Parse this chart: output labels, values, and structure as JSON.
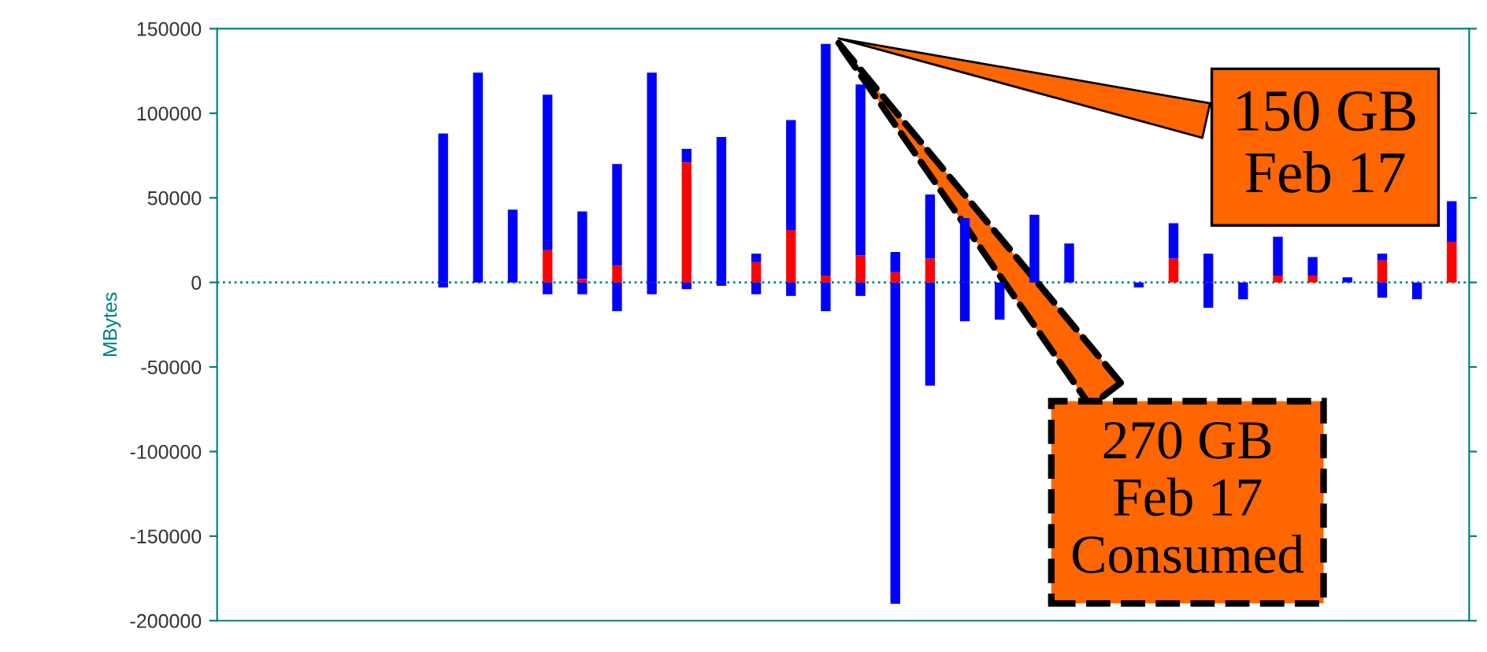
{
  "chart_data": {
    "type": "bar",
    "stacked": true,
    "ylabel": "MBytes",
    "categories": [
      null,
      null,
      null,
      null,
      null,
      null,
      null,
      null,
      null,
      null,
      null,
      null,
      null,
      null,
      null,
      null,
      null,
      null,
      null,
      null,
      null,
      null,
      null,
      null,
      null,
      null,
      null,
      null,
      null,
      null,
      null,
      null,
      null,
      null,
      null,
      null
    ],
    "series": [
      {
        "color": "#ff0000",
        "values": [
          null,
          null,
          null,
          null,
          null,
          null,
          0,
          0,
          0,
          19000,
          2000,
          10000,
          0,
          71000,
          0,
          12000,
          31000,
          4000,
          16000,
          6000,
          14000,
          0,
          0,
          0,
          0,
          null,
          0,
          14000,
          0,
          0,
          4000,
          4000,
          0,
          13000,
          0,
          24000
        ]
      },
      {
        "color": "#0000ff",
        "values": [
          null,
          null,
          null,
          null,
          null,
          null,
          88000,
          124000,
          43000,
          92000,
          40000,
          60000,
          124000,
          8000,
          86000,
          5000,
          65000,
          137000,
          101000,
          12000,
          38000,
          38000,
          null,
          40000,
          23000,
          null,
          0,
          21000,
          17000,
          0,
          23000,
          11000,
          3000,
          4000,
          0,
          24000
        ]
      },
      {
        "color": "#0000ff",
        "values": [
          null,
          null,
          null,
          null,
          null,
          null,
          -3000,
          0,
          0,
          -7000,
          -7000,
          -17000,
          -7000,
          -4000,
          -2000,
          -7000,
          -8000,
          -17000,
          -8000,
          -190000,
          -61000,
          -23000,
          -22000,
          null,
          null,
          null,
          -3000,
          null,
          -15000,
          -10000,
          0,
          null,
          null,
          -9000,
          -10000,
          0
        ]
      }
    ],
    "ylim": [
      -200000,
      150000
    ],
    "yticks": [
      -200000,
      -150000,
      -100000,
      -50000,
      0,
      50000,
      100000,
      150000
    ],
    "ref_lines": [
      {
        "axis": "y",
        "value": 0,
        "color": "#008080",
        "line_style": "dotted"
      }
    ],
    "grid": false,
    "annotations": [
      "150 GB\nFeb 17",
      "270 GB\nFeb 17\nConsumed"
    ]
  }
}
